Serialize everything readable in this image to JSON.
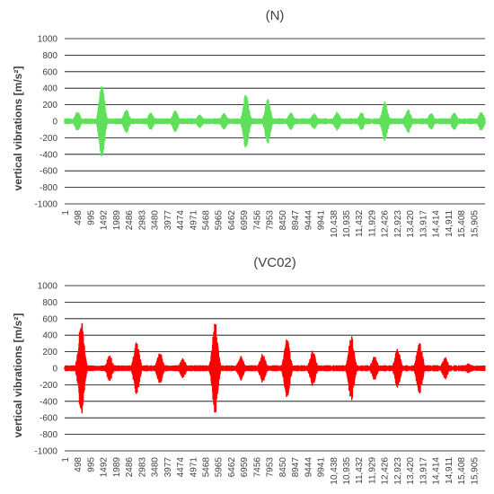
{
  "chart_data": [
    {
      "type": "line",
      "title": "(N)",
      "ylabel": "vertical vibrations [m/s²]",
      "ylim": [
        -1000,
        1000
      ],
      "yticks": [
        "1000",
        "800",
        "600",
        "400",
        "200",
        "0",
        "-200",
        "-400",
        "-600",
        "-800",
        "-1000"
      ],
      "x_tick_labels": [
        "1",
        "498",
        "995",
        "1492",
        "1989",
        "2486",
        "2983",
        "3480",
        "3977",
        "4474",
        "4971",
        "5468",
        "5965",
        "6462",
        "6959",
        "7456",
        "7953",
        "8450",
        "8947",
        "9444",
        "9941",
        "10,438",
        "10,935",
        "11,432",
        "11,929",
        "12,426",
        "12,923",
        "13,420",
        "13,917",
        "14,414",
        "14,911",
        "15,408",
        "15,905"
      ],
      "xlim": [
        1,
        16350
      ],
      "grid": true,
      "color": "#5fe05a",
      "series": [
        {
          "baseline_amplitude": 25,
          "bursts": [
            {
              "x": 500,
              "amplitude": 120
            },
            {
              "x": 1450,
              "amplitude": 460
            },
            {
              "x": 2400,
              "amplitude": 140
            },
            {
              "x": 3350,
              "amplitude": 110
            },
            {
              "x": 4300,
              "amplitude": 130
            },
            {
              "x": 5250,
              "amplitude": 90
            },
            {
              "x": 6200,
              "amplitude": 100
            },
            {
              "x": 7050,
              "amplitude": 340
            },
            {
              "x": 7900,
              "amplitude": 280
            },
            {
              "x": 8800,
              "amplitude": 110
            },
            {
              "x": 9700,
              "amplitude": 100
            },
            {
              "x": 10600,
              "amplitude": 120
            },
            {
              "x": 11550,
              "amplitude": 110
            },
            {
              "x": 12450,
              "amplitude": 240
            },
            {
              "x": 13350,
              "amplitude": 150
            },
            {
              "x": 14250,
              "amplitude": 100
            },
            {
              "x": 15150,
              "amplitude": 110
            },
            {
              "x": 16200,
              "amplitude": 120
            }
          ]
        }
      ]
    },
    {
      "type": "line",
      "title": "(VC02)",
      "ylabel": "vertical vibrations [m/s²]",
      "ylim": [
        -1000,
        1000
      ],
      "yticks": [
        "1000",
        "800",
        "600",
        "400",
        "200",
        "0",
        "-200",
        "-400",
        "-600",
        "-800",
        "-1000"
      ],
      "x_tick_labels": [
        "1",
        "498",
        "995",
        "1492",
        "1989",
        "2486",
        "2983",
        "3480",
        "3977",
        "4474",
        "4971",
        "5468",
        "5965",
        "6462",
        "6959",
        "7456",
        "7953",
        "8450",
        "8947",
        "9444",
        "9941",
        "10,438",
        "10,935",
        "11,432",
        "11,929",
        "12,426",
        "12,923",
        "13,420",
        "13,917",
        "14,414",
        "14,911",
        "15,408",
        "15,905"
      ],
      "xlim": [
        1,
        16350
      ],
      "grid": true,
      "color": "#ff0000",
      "series": [
        {
          "baseline_amplitude": 25,
          "bursts": [
            {
              "x": 650,
              "amplitude": 580
            },
            {
              "x": 1750,
              "amplitude": 160
            },
            {
              "x": 2800,
              "amplitude": 320
            },
            {
              "x": 3700,
              "amplitude": 200
            },
            {
              "x": 4600,
              "amplitude": 120
            },
            {
              "x": 5850,
              "amplitude": 560
            },
            {
              "x": 6850,
              "amplitude": 150
            },
            {
              "x": 7700,
              "amplitude": 180
            },
            {
              "x": 8650,
              "amplitude": 360
            },
            {
              "x": 9650,
              "amplitude": 220
            },
            {
              "x": 11150,
              "amplitude": 400
            },
            {
              "x": 12050,
              "amplitude": 150
            },
            {
              "x": 12950,
              "amplitude": 240
            },
            {
              "x": 13800,
              "amplitude": 340
            },
            {
              "x": 14800,
              "amplitude": 140
            },
            {
              "x": 15700,
              "amplitude": 60
            }
          ]
        }
      ]
    }
  ]
}
